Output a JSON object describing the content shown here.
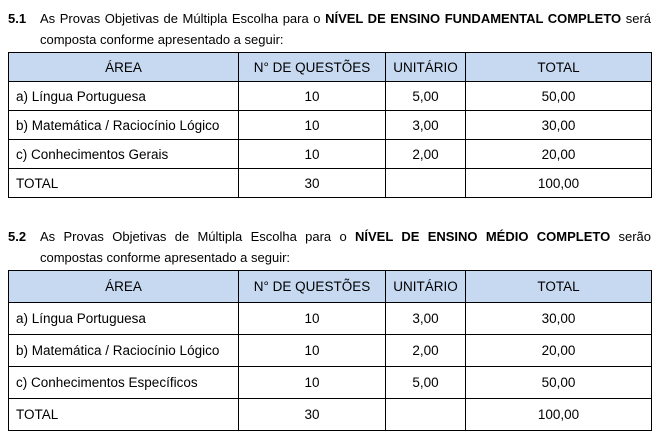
{
  "colors": {
    "header_bg": "#c6d9f1",
    "border": "#000000",
    "text": "#000000",
    "page_bg": "#ffffff"
  },
  "sections": [
    {
      "number": "5.1",
      "intro_before": "As Provas Objetivas de Múltipla Escolha para o ",
      "intro_bold": "NÍVEL DE ENSINO FUNDAMENTAL COMPLETO",
      "intro_after": " será composta conforme apresentado a seguir:",
      "table": {
        "headers": [
          "ÁREA",
          "N° DE QUESTÕES",
          "UNITÁRIO",
          "TOTAL"
        ],
        "rows": [
          [
            "a) Língua Portuguesa",
            "10",
            "5,00",
            "50,00"
          ],
          [
            "b) Matemática / Raciocínio Lógico",
            "10",
            "3,00",
            "30,00"
          ],
          [
            "c) Conhecimentos Gerais",
            "10",
            "2,00",
            "20,00"
          ],
          [
            "TOTAL",
            "30",
            "",
            "100,00"
          ]
        ]
      }
    },
    {
      "number": "5.2",
      "intro_before": "As Provas Objetivas de Múltipla Escolha para o ",
      "intro_bold": "NÍVEL DE ENSINO MÉDIO COMPLETO",
      "intro_after": " serão compostas conforme apresentado a seguir:",
      "table": {
        "headers": [
          "ÁREA",
          "N° DE QUESTÕES",
          "UNITÁRIO",
          "TOTAL"
        ],
        "rows": [
          [
            "a) Língua Portuguesa",
            "10",
            "3,00",
            "30,00"
          ],
          [
            "b) Matemática / Raciocínio Lógico",
            "10",
            "2,00",
            "20,00"
          ],
          [
            "c) Conhecimentos Específicos",
            "10",
            "5,00",
            "50,00"
          ],
          [
            "TOTAL",
            "30",
            "",
            "100,00"
          ]
        ]
      }
    }
  ]
}
